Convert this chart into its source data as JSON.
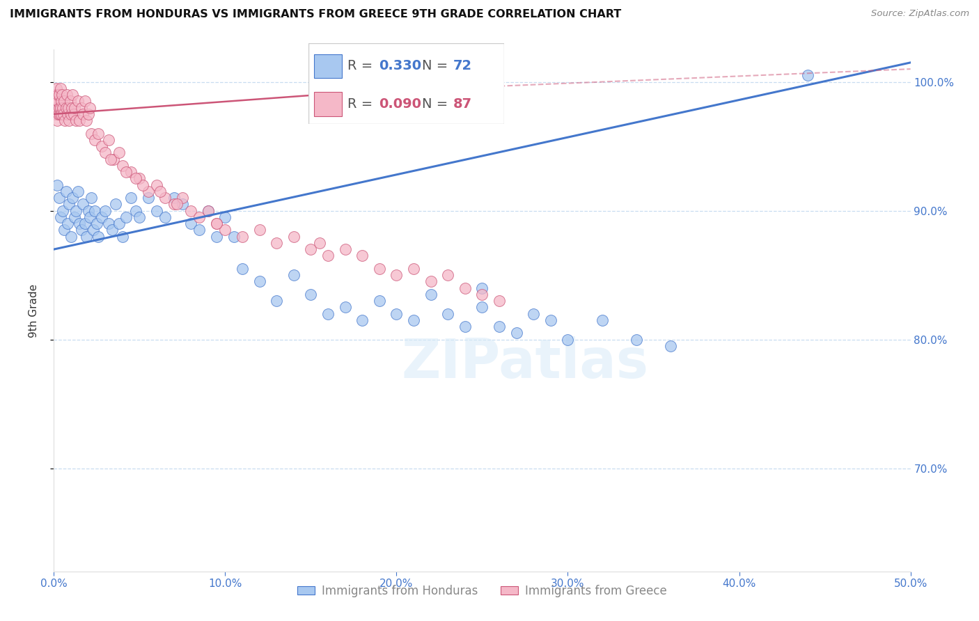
{
  "title": "IMMIGRANTS FROM HONDURAS VS IMMIGRANTS FROM GREECE 9TH GRADE CORRELATION CHART",
  "source": "Source: ZipAtlas.com",
  "ylabel": "9th Grade",
  "xlim": [
    0.0,
    50.0
  ],
  "ylim": [
    62.0,
    102.5
  ],
  "yticks": [
    70.0,
    80.0,
    90.0,
    100.0
  ],
  "xticks": [
    0.0,
    10.0,
    20.0,
    30.0,
    40.0,
    50.0
  ],
  "watermark": "ZIPatlas",
  "legend": {
    "R_honduras": "0.330",
    "N_honduras": "72",
    "R_greece": "0.090",
    "N_greece": "87"
  },
  "blue_color": "#a8c8f0",
  "pink_color": "#f5b8c8",
  "blue_line_color": "#4477cc",
  "pink_line_color": "#cc5577",
  "honduras_x": [
    0.2,
    0.3,
    0.4,
    0.5,
    0.6,
    0.7,
    0.8,
    0.9,
    1.0,
    1.1,
    1.2,
    1.3,
    1.4,
    1.5,
    1.6,
    1.7,
    1.8,
    1.9,
    2.0,
    2.1,
    2.2,
    2.3,
    2.4,
    2.5,
    2.6,
    2.8,
    3.0,
    3.2,
    3.4,
    3.6,
    3.8,
    4.0,
    4.2,
    4.5,
    4.8,
    5.0,
    5.5,
    6.0,
    6.5,
    7.0,
    7.5,
    8.0,
    8.5,
    9.0,
    9.5,
    10.0,
    10.5,
    11.0,
    12.0,
    13.0,
    14.0,
    15.0,
    16.0,
    17.0,
    18.0,
    19.0,
    20.0,
    21.0,
    22.0,
    23.0,
    24.0,
    25.0,
    26.0,
    27.0,
    28.0,
    29.0,
    30.0,
    32.0,
    34.0,
    36.0,
    44.0,
    25.0
  ],
  "honduras_y": [
    92.0,
    91.0,
    89.5,
    90.0,
    88.5,
    91.5,
    89.0,
    90.5,
    88.0,
    91.0,
    89.5,
    90.0,
    91.5,
    89.0,
    88.5,
    90.5,
    89.0,
    88.0,
    90.0,
    89.5,
    91.0,
    88.5,
    90.0,
    89.0,
    88.0,
    89.5,
    90.0,
    89.0,
    88.5,
    90.5,
    89.0,
    88.0,
    89.5,
    91.0,
    90.0,
    89.5,
    91.0,
    90.0,
    89.5,
    91.0,
    90.5,
    89.0,
    88.5,
    90.0,
    88.0,
    89.5,
    88.0,
    85.5,
    84.5,
    83.0,
    85.0,
    83.5,
    82.0,
    82.5,
    81.5,
    83.0,
    82.0,
    81.5,
    83.5,
    82.0,
    81.0,
    82.5,
    81.0,
    80.5,
    82.0,
    81.5,
    80.0,
    81.5,
    80.0,
    79.5,
    100.5,
    84.0
  ],
  "greece_x": [
    0.05,
    0.08,
    0.1,
    0.12,
    0.15,
    0.18,
    0.2,
    0.22,
    0.25,
    0.28,
    0.3,
    0.32,
    0.35,
    0.38,
    0.4,
    0.42,
    0.45,
    0.48,
    0.5,
    0.55,
    0.6,
    0.65,
    0.7,
    0.75,
    0.8,
    0.85,
    0.9,
    0.95,
    1.0,
    1.05,
    1.1,
    1.15,
    1.2,
    1.3,
    1.4,
    1.5,
    1.6,
    1.7,
    1.8,
    1.9,
    2.0,
    2.1,
    2.2,
    2.4,
    2.6,
    2.8,
    3.0,
    3.2,
    3.5,
    4.0,
    4.5,
    5.0,
    5.5,
    6.0,
    6.5,
    7.0,
    7.5,
    8.0,
    8.5,
    9.0,
    9.5,
    10.0,
    11.0,
    12.0,
    13.0,
    14.0,
    15.0,
    16.0,
    17.0,
    18.0,
    19.0,
    20.0,
    21.0,
    22.0,
    23.0,
    24.0,
    25.0,
    26.0,
    4.2,
    5.2,
    7.2,
    9.5,
    15.5,
    3.8,
    4.8,
    6.2,
    3.3
  ],
  "greece_y": [
    98.5,
    99.0,
    97.5,
    98.0,
    99.5,
    98.5,
    97.0,
    98.5,
    99.0,
    97.5,
    98.0,
    99.0,
    97.5,
    98.0,
    99.5,
    97.5,
    98.5,
    99.0,
    98.0,
    97.5,
    98.5,
    97.0,
    98.0,
    99.0,
    97.5,
    98.0,
    97.0,
    98.5,
    97.5,
    98.0,
    99.0,
    97.5,
    98.0,
    97.0,
    98.5,
    97.0,
    98.0,
    97.5,
    98.5,
    97.0,
    97.5,
    98.0,
    96.0,
    95.5,
    96.0,
    95.0,
    94.5,
    95.5,
    94.0,
    93.5,
    93.0,
    92.5,
    91.5,
    92.0,
    91.0,
    90.5,
    91.0,
    90.0,
    89.5,
    90.0,
    89.0,
    88.5,
    88.0,
    88.5,
    87.5,
    88.0,
    87.0,
    86.5,
    87.0,
    86.5,
    85.5,
    85.0,
    85.5,
    84.5,
    85.0,
    84.0,
    83.5,
    83.0,
    93.0,
    92.0,
    90.5,
    89.0,
    87.5,
    94.5,
    92.5,
    91.5,
    94.0
  ],
  "blue_trend_x": [
    0.0,
    50.0
  ],
  "blue_trend_y": [
    87.0,
    101.5
  ],
  "pink_trend_x": [
    0.0,
    17.5
  ],
  "pink_trend_y": [
    97.5,
    99.2
  ]
}
